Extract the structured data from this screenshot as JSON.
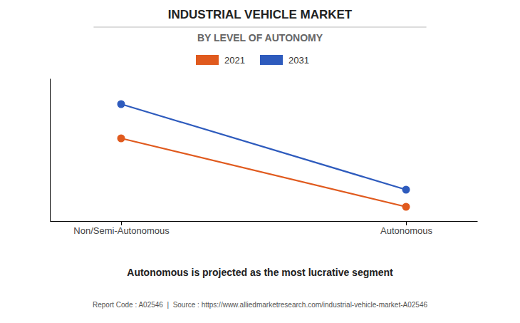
{
  "chart_data": {
    "type": "line",
    "title": "INDUSTRIAL VEHICLE MARKET",
    "subtitle": "BY LEVEL OF AUTONOMY",
    "annotations": [
      "Autonomous is projected as the most lucrative segment",
      "Report Code : A02546  |  Source : https://www.alliedmarketresearch.com/industrial-vehicle-market-A02546"
    ],
    "categories": [
      "Non/Semi-Autonomous",
      "Autonomous"
    ],
    "series": [
      {
        "name": "2021",
        "color": "#e05a1e",
        "values": [
          0.58,
          0.1
        ]
      },
      {
        "name": "2031",
        "color": "#2e5bbd",
        "values": [
          0.82,
          0.22
        ]
      }
    ],
    "ylim": [
      0.0,
      1.0
    ],
    "marker": "circle",
    "legend": "top",
    "grid": false,
    "tick_labels": "x"
  }
}
